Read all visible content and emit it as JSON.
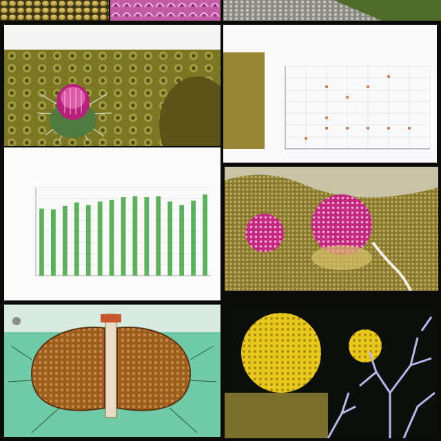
{
  "tiles": {
    "top_strip": [
      "snake-scale-texture",
      "pink-coral-texture",
      "gray-gravel-texture"
    ],
    "thistle_panel": {
      "caption": "",
      "colors": {
        "flower": "#b6207a",
        "background": "#8a8630"
      }
    },
    "scatter_panel": {
      "caption": ""
    },
    "bar_panel": {
      "caption": "",
      "bar_color": "#5cb15a"
    },
    "pollen_panel": {
      "colors": {
        "sphere": "#c2287e",
        "ground": "#8a7a30"
      }
    },
    "organ_panel": {
      "caption": "",
      "colors": {
        "organ": "#9e5d1f",
        "background": "#6fcaa7"
      }
    },
    "sphere_coral_panel": {
      "colors": {
        "sphere": "#e9c81c",
        "coral": "#b9b7ee"
      }
    }
  },
  "chart_data": [
    {
      "type": "scatter",
      "x": [
        1,
        2,
        2,
        3,
        4,
        5,
        6,
        5,
        3,
        2,
        4
      ],
      "y": [
        1,
        2,
        6,
        5,
        2,
        2,
        2,
        7,
        2,
        3,
        6
      ],
      "title": "",
      "xlabel": "",
      "ylabel": "",
      "grid": true
    },
    {
      "type": "bar",
      "categories": [
        "",
        "",
        "",
        "",
        "",
        "",
        "",
        "",
        "",
        "",
        "",
        "",
        "",
        "",
        ""
      ],
      "values": [
        76,
        75,
        79,
        83,
        80,
        84,
        86,
        89,
        90,
        89,
        90,
        84,
        80,
        85,
        92
      ],
      "title": "",
      "xlabel": "",
      "ylabel": "",
      "ylim": [
        0,
        100
      ],
      "grid": true
    }
  ]
}
